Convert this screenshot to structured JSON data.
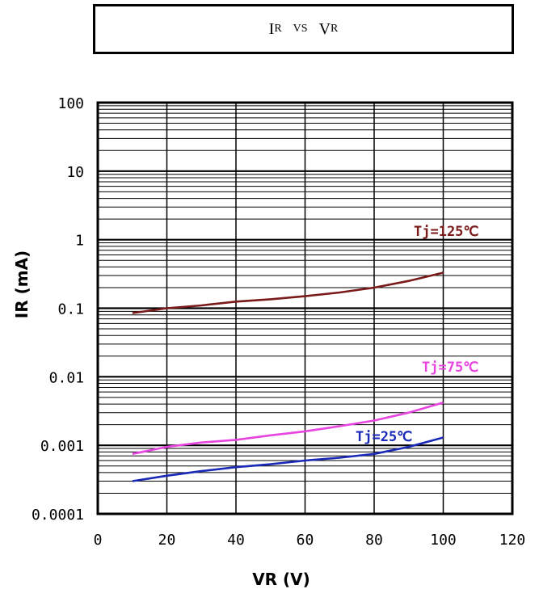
{
  "title": {
    "main1": "I",
    "sub1": "R",
    "mid": "VS",
    "main2": "V",
    "sub2": "R"
  },
  "chart_data": {
    "type": "line",
    "title": "IR VS VR",
    "xlabel": "VR (V)",
    "ylabel": "IR (mA)",
    "x_scale": "linear",
    "y_scale": "log",
    "xlim": [
      0,
      120
    ],
    "ylim": [
      0.0001,
      100
    ],
    "grid": true,
    "x_ticks": [
      "0",
      "20",
      "40",
      "60",
      "80",
      "100",
      "120"
    ],
    "y_ticks": [
      "100",
      "10",
      "1",
      "0.1",
      "0.01",
      "0.001",
      "0.0001"
    ],
    "series": [
      {
        "name": "Tj=125℃",
        "color": "#7a1a1a",
        "x": [
          10,
          20,
          30,
          40,
          50,
          60,
          70,
          80,
          90,
          100
        ],
        "y": [
          0.085,
          0.1,
          0.11,
          0.125,
          0.135,
          0.15,
          0.17,
          0.2,
          0.25,
          0.33
        ]
      },
      {
        "name": "Tj=75℃",
        "color": "#e844e0",
        "x": [
          10,
          20,
          30,
          40,
          50,
          60,
          70,
          80,
          90,
          100
        ],
        "y": [
          0.00075,
          0.00095,
          0.0011,
          0.0012,
          0.0014,
          0.0016,
          0.0019,
          0.0023,
          0.003,
          0.0042
        ]
      },
      {
        "name": "Tj=25℃",
        "color": "#1a2ab8",
        "x": [
          10,
          20,
          30,
          40,
          50,
          60,
          70,
          80,
          90,
          100
        ],
        "y": [
          0.0003,
          0.00036,
          0.00042,
          0.00048,
          0.00053,
          0.0006,
          0.00066,
          0.00075,
          0.00095,
          0.0013
        ]
      }
    ]
  }
}
